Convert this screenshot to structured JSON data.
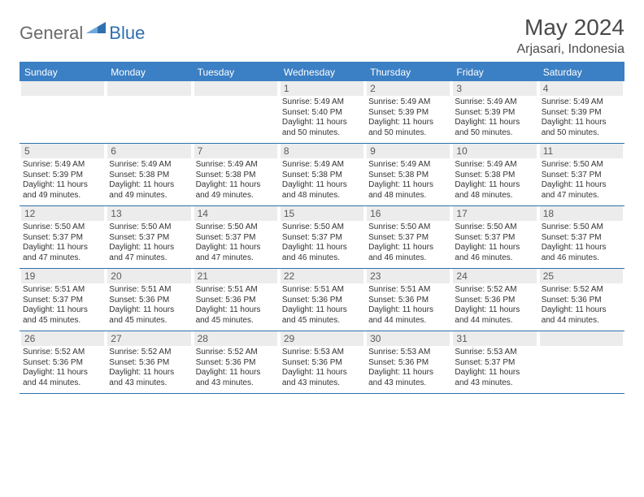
{
  "brand": {
    "general": "General",
    "blue": "Blue"
  },
  "title": "May 2024",
  "location": "Arjasari, Indonesia",
  "colors": {
    "header_bg": "#3b7fc4",
    "header_text": "#ffffff",
    "daynum_bg": "#ececec",
    "border": "#2f6fb0",
    "page_bg": "#ffffff",
    "logo_grey": "#6a6a6a",
    "logo_blue": "#2f6fb0"
  },
  "dow": [
    "Sunday",
    "Monday",
    "Tuesday",
    "Wednesday",
    "Thursday",
    "Friday",
    "Saturday"
  ],
  "weeks": [
    [
      null,
      null,
      null,
      {
        "d": "1",
        "sr": "5:49 AM",
        "ss": "5:40 PM",
        "dl": "11 hours and 50 minutes."
      },
      {
        "d": "2",
        "sr": "5:49 AM",
        "ss": "5:39 PM",
        "dl": "11 hours and 50 minutes."
      },
      {
        "d": "3",
        "sr": "5:49 AM",
        "ss": "5:39 PM",
        "dl": "11 hours and 50 minutes."
      },
      {
        "d": "4",
        "sr": "5:49 AM",
        "ss": "5:39 PM",
        "dl": "11 hours and 50 minutes."
      }
    ],
    [
      {
        "d": "5",
        "sr": "5:49 AM",
        "ss": "5:39 PM",
        "dl": "11 hours and 49 minutes."
      },
      {
        "d": "6",
        "sr": "5:49 AM",
        "ss": "5:38 PM",
        "dl": "11 hours and 49 minutes."
      },
      {
        "d": "7",
        "sr": "5:49 AM",
        "ss": "5:38 PM",
        "dl": "11 hours and 49 minutes."
      },
      {
        "d": "8",
        "sr": "5:49 AM",
        "ss": "5:38 PM",
        "dl": "11 hours and 48 minutes."
      },
      {
        "d": "9",
        "sr": "5:49 AM",
        "ss": "5:38 PM",
        "dl": "11 hours and 48 minutes."
      },
      {
        "d": "10",
        "sr": "5:49 AM",
        "ss": "5:38 PM",
        "dl": "11 hours and 48 minutes."
      },
      {
        "d": "11",
        "sr": "5:50 AM",
        "ss": "5:37 PM",
        "dl": "11 hours and 47 minutes."
      }
    ],
    [
      {
        "d": "12",
        "sr": "5:50 AM",
        "ss": "5:37 PM",
        "dl": "11 hours and 47 minutes."
      },
      {
        "d": "13",
        "sr": "5:50 AM",
        "ss": "5:37 PM",
        "dl": "11 hours and 47 minutes."
      },
      {
        "d": "14",
        "sr": "5:50 AM",
        "ss": "5:37 PM",
        "dl": "11 hours and 47 minutes."
      },
      {
        "d": "15",
        "sr": "5:50 AM",
        "ss": "5:37 PM",
        "dl": "11 hours and 46 minutes."
      },
      {
        "d": "16",
        "sr": "5:50 AM",
        "ss": "5:37 PM",
        "dl": "11 hours and 46 minutes."
      },
      {
        "d": "17",
        "sr": "5:50 AM",
        "ss": "5:37 PM",
        "dl": "11 hours and 46 minutes."
      },
      {
        "d": "18",
        "sr": "5:50 AM",
        "ss": "5:37 PM",
        "dl": "11 hours and 46 minutes."
      }
    ],
    [
      {
        "d": "19",
        "sr": "5:51 AM",
        "ss": "5:37 PM",
        "dl": "11 hours and 45 minutes."
      },
      {
        "d": "20",
        "sr": "5:51 AM",
        "ss": "5:36 PM",
        "dl": "11 hours and 45 minutes."
      },
      {
        "d": "21",
        "sr": "5:51 AM",
        "ss": "5:36 PM",
        "dl": "11 hours and 45 minutes."
      },
      {
        "d": "22",
        "sr": "5:51 AM",
        "ss": "5:36 PM",
        "dl": "11 hours and 45 minutes."
      },
      {
        "d": "23",
        "sr": "5:51 AM",
        "ss": "5:36 PM",
        "dl": "11 hours and 44 minutes."
      },
      {
        "d": "24",
        "sr": "5:52 AM",
        "ss": "5:36 PM",
        "dl": "11 hours and 44 minutes."
      },
      {
        "d": "25",
        "sr": "5:52 AM",
        "ss": "5:36 PM",
        "dl": "11 hours and 44 minutes."
      }
    ],
    [
      {
        "d": "26",
        "sr": "5:52 AM",
        "ss": "5:36 PM",
        "dl": "11 hours and 44 minutes."
      },
      {
        "d": "27",
        "sr": "5:52 AM",
        "ss": "5:36 PM",
        "dl": "11 hours and 43 minutes."
      },
      {
        "d": "28",
        "sr": "5:52 AM",
        "ss": "5:36 PM",
        "dl": "11 hours and 43 minutes."
      },
      {
        "d": "29",
        "sr": "5:53 AM",
        "ss": "5:36 PM",
        "dl": "11 hours and 43 minutes."
      },
      {
        "d": "30",
        "sr": "5:53 AM",
        "ss": "5:36 PM",
        "dl": "11 hours and 43 minutes."
      },
      {
        "d": "31",
        "sr": "5:53 AM",
        "ss": "5:37 PM",
        "dl": "11 hours and 43 minutes."
      },
      null
    ]
  ],
  "labels": {
    "sunrise": "Sunrise:",
    "sunset": "Sunset:",
    "daylight": "Daylight:"
  }
}
